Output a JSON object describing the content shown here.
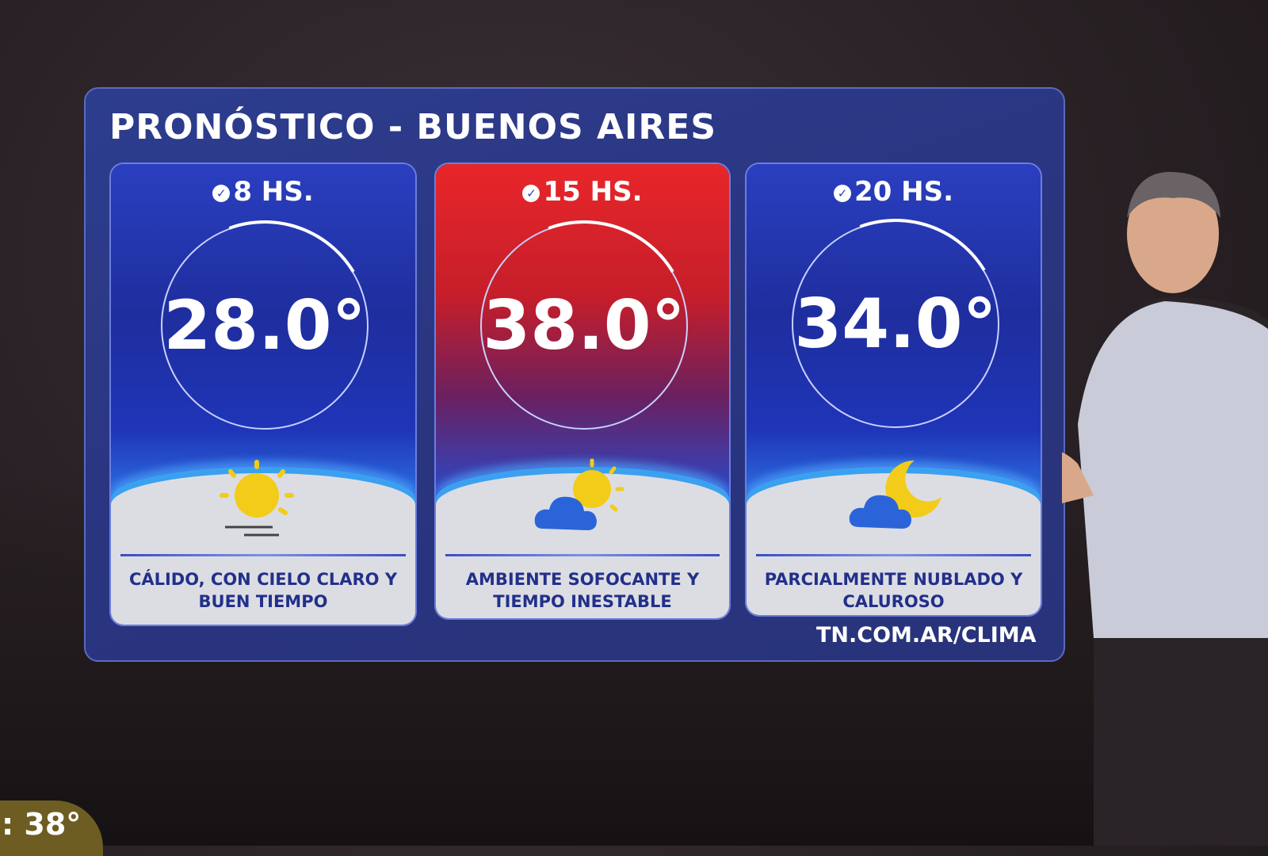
{
  "title": "PRONÓSTICO -  BUENOS AIRES",
  "cards": [
    {
      "time": "8 HS.",
      "temp": "28.0°",
      "icon": "sun-icon",
      "description": "CÁLIDO, CON CIELO CLARO Y BUEN TIEMPO",
      "theme": "blue"
    },
    {
      "time": "15 HS.",
      "temp": "38.0°",
      "icon": "cloud-sun-icon",
      "description": "AMBIENTE SOFOCANTE Y TIEMPO INESTABLE",
      "theme": "red"
    },
    {
      "time": "20 HS.",
      "temp": "34.0°",
      "icon": "cloud-moon-icon",
      "description": "PARCIALMENTE NUBLADO Y CALUROSO",
      "theme": "blue"
    }
  ],
  "url": "TN.COM.AR/CLIMA",
  "ticker": ": 38°",
  "colors": {
    "panel": "#2a3580",
    "hot": "#e8262a",
    "text_dark": "#22308a",
    "ticker": "#6e5d22"
  }
}
